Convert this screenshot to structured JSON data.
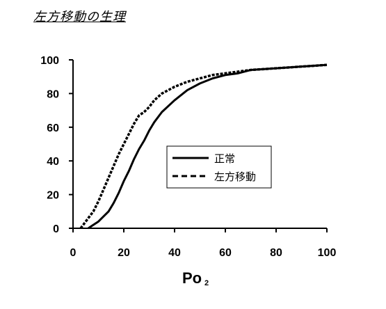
{
  "chart_data": {
    "type": "line",
    "title": "左方移動の生理",
    "xlabel": "Po",
    "xlabel_sub": "2",
    "ylabel": "",
    "xlim": [
      0,
      100
    ],
    "ylim": [
      0,
      100
    ],
    "xticks": [
      0,
      20,
      40,
      60,
      80,
      100
    ],
    "yticks": [
      0,
      20,
      40,
      60,
      80,
      100
    ],
    "grid": false,
    "legend_position": "center-right",
    "series": [
      {
        "name": "正常",
        "style": "solid",
        "x": [
          6,
          8,
          10,
          12,
          14,
          16,
          18,
          20,
          22,
          24,
          26,
          28,
          30,
          32,
          35,
          40,
          45,
          50,
          55,
          60,
          65,
          70,
          80,
          90,
          100
        ],
        "y": [
          0,
          2,
          4,
          7,
          10,
          15,
          21,
          28,
          34,
          41,
          47,
          52,
          58,
          63,
          69,
          76,
          82,
          86,
          89,
          91,
          92,
          94,
          95,
          96,
          97
        ]
      },
      {
        "name": "左方移動",
        "style": "dashed",
        "x": [
          3,
          4,
          6,
          8,
          10,
          12,
          14,
          16,
          18,
          20,
          22,
          24,
          26,
          28,
          30,
          32,
          35,
          40,
          45,
          50,
          55,
          60,
          65,
          70,
          80,
          90,
          100
        ],
        "y": [
          0,
          2,
          6,
          10,
          16,
          23,
          30,
          37,
          44,
          50,
          56,
          62,
          67,
          69,
          72,
          76,
          80,
          84,
          87,
          89,
          91,
          92,
          93,
          94,
          95,
          96,
          97
        ]
      }
    ]
  }
}
